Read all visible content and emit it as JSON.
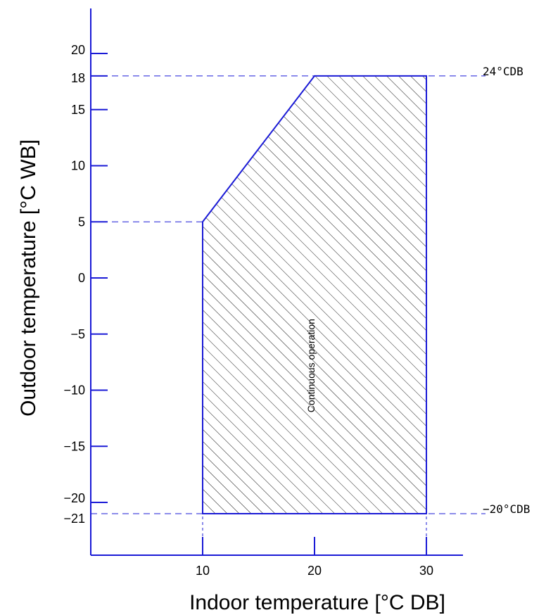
{
  "chart_data": {
    "type": "area",
    "title": "",
    "xlabel": "Indoor temperature [°C DB]",
    "ylabel": "Outdoor temperature [°C WB]",
    "x_ticks": [
      10,
      20,
      30
    ],
    "y_ticks": [
      {
        "value": 20,
        "label": "20"
      },
      {
        "value": 18,
        "label": "18"
      },
      {
        "value": 15,
        "label": "15"
      },
      {
        "value": 10,
        "label": "10"
      },
      {
        "value": 5,
        "label": "5"
      },
      {
        "value": 0,
        "label": "0"
      },
      {
        "value": -5,
        "label": "−5"
      },
      {
        "value": -10,
        "label": "−10"
      },
      {
        "value": -15,
        "label": "−15"
      },
      {
        "value": -20,
        "label": "−20"
      },
      {
        "value": -21,
        "label": "−21"
      }
    ],
    "region": {
      "name": "Continuous operation",
      "hatched": true,
      "points": [
        [
          10,
          5
        ],
        [
          20,
          18
        ],
        [
          30,
          18
        ],
        [
          30,
          -21
        ],
        [
          10,
          -21
        ]
      ]
    },
    "limit_lines": [
      {
        "y": 18,
        "label": "24°CDB"
      },
      {
        "y": -21,
        "label": "−20°CDB"
      }
    ],
    "guide_lines": [
      {
        "y": 5,
        "x_end": 10
      }
    ],
    "xlim": [
      0,
      33
    ],
    "ylim": [
      -23.5,
      25
    ],
    "grid": false,
    "colors": {
      "region_outline": "#1a1ad6",
      "guides": "#1a1ad6",
      "hatch": "#000000",
      "axes": "#1a1ad6"
    }
  }
}
